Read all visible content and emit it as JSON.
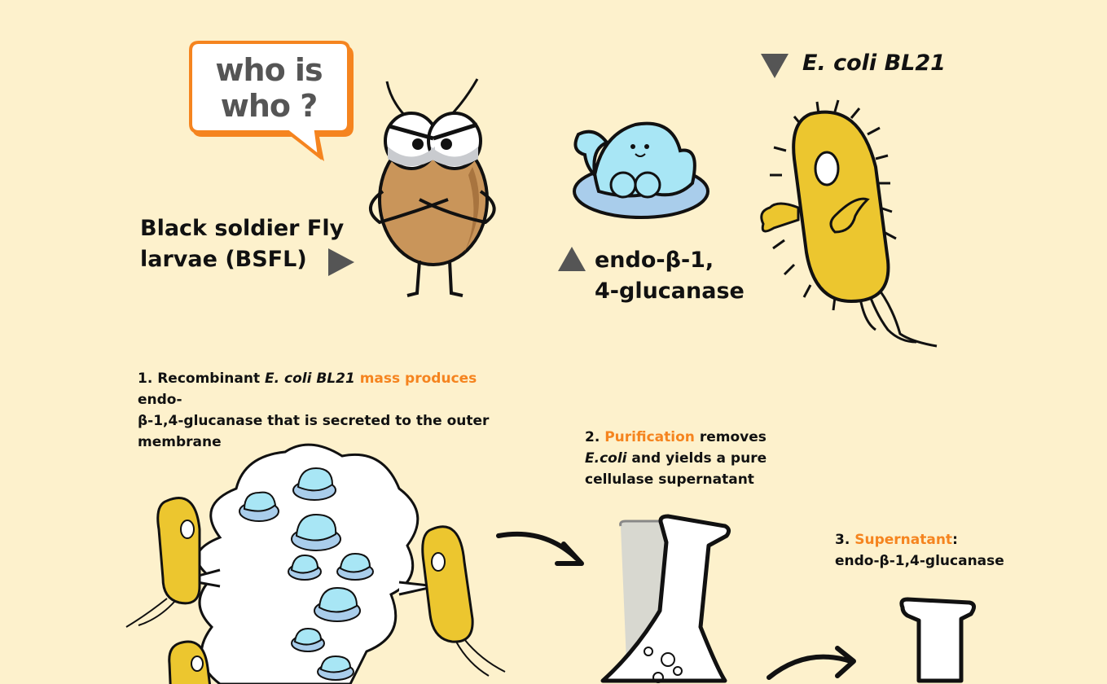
{
  "speech": {
    "line1": "who is",
    "line2": "who ?"
  },
  "labels": {
    "bsfl_line1": "Black soldier Fly",
    "bsfl_line2": "larvae (BSFL)",
    "enzyme_line1": "endo-β-1,",
    "enzyme_line2": "4-glucanase",
    "ecoli": "E. coli BL21"
  },
  "steps": {
    "step1": {
      "num": "1.",
      "pre": "Recombinant",
      "italic": "E. coli BL21",
      "highlight": "mass produces",
      "post_line1": "endo-",
      "line2": "β-1,4-glucanase that is secreted to the outer",
      "line3": "membrane"
    },
    "step2": {
      "num": "2.",
      "highlight": "Purification",
      "post": "removes",
      "italic": "E.coli",
      "line2_rest": "and yields a pure",
      "line3": "cellulase supernatant"
    },
    "step3": {
      "num": "3.",
      "highlight": "Supernatant",
      "colon": ":",
      "line2": "endo-β-1,4-glucanase"
    }
  },
  "icons": [
    "speech-bubble",
    "larva-character",
    "enzyme-character",
    "ecoli-character",
    "arrow-right-icon",
    "arrow-up-icon",
    "arrow-down-icon",
    "flask-icon",
    "curved-arrow-icon"
  ],
  "colors": {
    "background": "#fdf1cc",
    "accent_orange": "#f5841f",
    "ecoli_yellow": "#ecc62f",
    "enzyme_blue": "#a8e6f5",
    "larva_brown": "#c9955a",
    "arrow_grey": "#555555"
  }
}
